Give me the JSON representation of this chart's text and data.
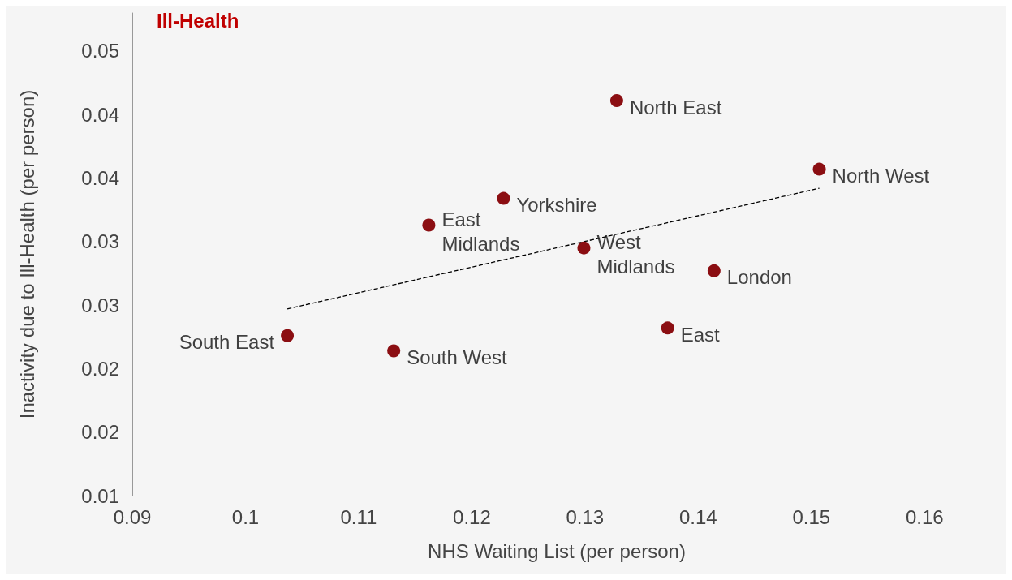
{
  "chart_data": {
    "type": "scatter",
    "title": "Ill-Health",
    "xlabel": "NHS Waiting List (per person)",
    "ylabel": "Inactivity due to Ill-Health (per person)",
    "x": [
      0.1037,
      0.1131,
      0.1162,
      0.1228,
      0.1299,
      0.1328,
      0.1373,
      0.1414,
      0.1507
    ],
    "series": [
      {
        "color": "#8b0e12",
        "values": [
          0.0226,
          0.0214,
          0.0313,
          0.0334,
          0.0295,
          0.0411,
          0.0232,
          0.0277,
          0.0357
        ],
        "marker": "circle"
      },
      {
        "type": "line",
        "x": [
          0.1037,
          0.1507
        ],
        "values": [
          0.0247,
          0.0342
        ],
        "color": "#000000",
        "line_style": "dashed",
        "marker": "none"
      }
    ],
    "annotations": [
      {
        "text": "South East",
        "x": 0.1037,
        "y": 0.0226
      },
      {
        "text": "South West",
        "x": 0.1131,
        "y": 0.0214
      },
      {
        "text": "East\nMidlands",
        "x": 0.1162,
        "y": 0.0313
      },
      {
        "text": "Yorkshire",
        "x": 0.1228,
        "y": 0.0334
      },
      {
        "text": "West\nMidlands",
        "x": 0.1299,
        "y": 0.0295
      },
      {
        "text": "North East",
        "x": 0.1328,
        "y": 0.0411
      },
      {
        "text": "East",
        "x": 0.1373,
        "y": 0.0232
      },
      {
        "text": "London",
        "x": 0.1414,
        "y": 0.0277
      },
      {
        "text": "North West",
        "x": 0.1507,
        "y": 0.0357
      }
    ],
    "xlim": [
      0.09,
      0.165
    ],
    "xticks": [
      0.09,
      0.1,
      0.11,
      0.12,
      0.13,
      0.14,
      0.15,
      0.16
    ],
    "ylim": [
      0.01,
      0.048
    ],
    "yticks": [
      {
        "value": 0.01,
        "label": "0.01"
      },
      {
        "value": 0.015,
        "label": "0.02"
      },
      {
        "value": 0.02,
        "label": "0.02"
      },
      {
        "value": 0.025,
        "label": "0.03"
      },
      {
        "value": 0.03,
        "label": "0.03"
      },
      {
        "value": 0.035,
        "label": "0.04"
      },
      {
        "value": 0.04,
        "label": "0.04"
      },
      {
        "value": 0.045,
        "label": "0.05"
      }
    ],
    "grid": false
  }
}
